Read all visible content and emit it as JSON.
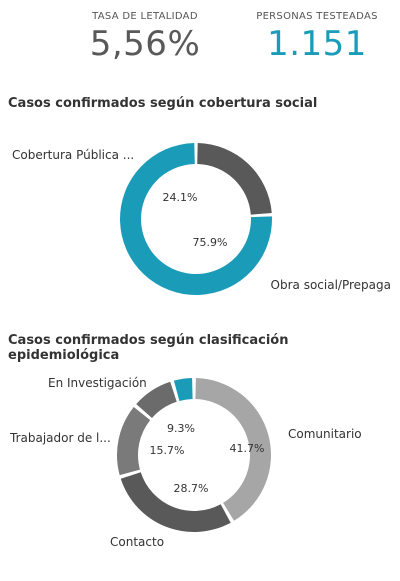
{
  "kpis": [
    {
      "label": "TASA DE LETALIDAD",
      "value": "5,56%",
      "color": "#595959"
    },
    {
      "label": "PERSONAS TESTEADAS",
      "value": "1.151",
      "color": "#1a9cb8"
    }
  ],
  "chart_data": [
    {
      "type": "pie",
      "title": "Casos confirmados según cobertura social",
      "donut": true,
      "labels": [
        "Cobertura Pública ...",
        "Obra social/Prepaga"
      ],
      "values": [
        24.1,
        75.9
      ],
      "value_labels": [
        "24.1%",
        "75.9%"
      ],
      "colors": [
        "#595959",
        "#1a9cb8"
      ]
    },
    {
      "type": "pie",
      "title": "Casos confirmados según clasificación epidemiológica",
      "donut": true,
      "labels": [
        "Comunitario",
        "Contacto",
        "Trabajador de l...",
        "En Investigación",
        "(sin etiqueta)"
      ],
      "values": [
        41.7,
        28.7,
        15.7,
        9.3,
        4.6
      ],
      "value_labels": [
        "41.7%",
        "28.7%",
        "15.7%",
        "9.3%",
        ""
      ],
      "colors": [
        "#a6a6a6",
        "#595959",
        "#7a7a7a",
        "#6b6b6b",
        "#1a9cb8"
      ]
    }
  ]
}
